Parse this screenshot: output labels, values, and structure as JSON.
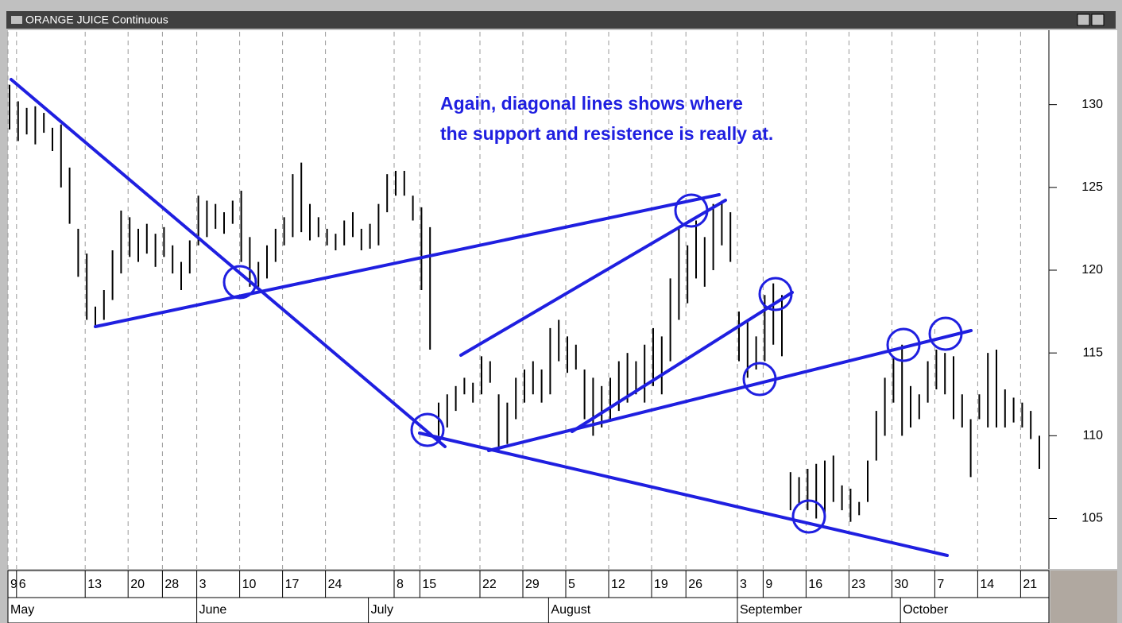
{
  "chart_data": {
    "type": "range-bar",
    "title": "ORANGE JUICE Continuous",
    "annotations": [
      "Again, diagonal lines shows where",
      "the support and resistence is really at."
    ],
    "categories": [
      "9",
      "6",
      null,
      null,
      null,
      null,
      null,
      null,
      null,
      "13",
      null,
      null,
      null,
      null,
      "20",
      null,
      null,
      null,
      "28",
      null,
      null,
      null,
      "3",
      null,
      null,
      null,
      null,
      "10",
      null,
      null,
      null,
      null,
      "17",
      null,
      null,
      null,
      null,
      "24",
      null,
      null,
      null,
      null,
      null,
      null,
      null,
      "8",
      null,
      null,
      "15",
      null,
      null,
      null,
      null,
      null,
      null,
      "22",
      null,
      null,
      null,
      null,
      "29",
      null,
      null,
      null,
      null,
      "5",
      null,
      null,
      null,
      null,
      "12",
      null,
      null,
      null,
      null,
      "19",
      null,
      null,
      null,
      "26",
      null,
      null,
      null,
      null,
      null,
      "3",
      null,
      null,
      "9",
      null,
      null,
      null,
      null,
      "16",
      null,
      null,
      null,
      null,
      "23",
      null,
      null,
      null,
      null,
      "30",
      null,
      null,
      null,
      null,
      "7",
      null,
      null,
      null,
      null,
      "14",
      null,
      null,
      null,
      null,
      "21",
      null,
      null
    ],
    "months": [
      "May",
      null,
      null,
      null,
      null,
      null,
      null,
      null,
      null,
      null,
      null,
      null,
      null,
      null,
      null,
      null,
      null,
      null,
      null,
      null,
      null,
      null,
      "June",
      null,
      null,
      null,
      null,
      null,
      null,
      null,
      null,
      null,
      null,
      null,
      null,
      null,
      null,
      null,
      null,
      null,
      null,
      null,
      "July",
      null,
      null,
      null,
      null,
      null,
      null,
      null,
      null,
      null,
      null,
      null,
      null,
      null,
      null,
      null,
      null,
      null,
      null,
      null,
      null,
      "August",
      null,
      null,
      null,
      null,
      null,
      null,
      null,
      null,
      null,
      null,
      null,
      null,
      null,
      null,
      null,
      null,
      null,
      null,
      null,
      null,
      null,
      "September",
      null,
      null,
      null,
      null,
      null,
      null,
      null,
      null,
      null,
      null,
      null,
      null,
      null,
      null,
      null,
      null,
      null,
      null,
      "October",
      null,
      null,
      null,
      null,
      null,
      null,
      null,
      null,
      null,
      null,
      null,
      null,
      null,
      null,
      null,
      null
    ],
    "high": [
      131.2,
      130.2,
      129.8,
      129.9,
      129.5,
      128.6,
      128.8,
      126.2,
      122.5,
      121.0,
      117.8,
      118.8,
      121.2,
      123.6,
      123.2,
      122.5,
      122.8,
      122.2,
      122.6,
      121.5,
      120.5,
      121.8,
      124.5,
      124.2,
      124.0,
      123.5,
      124.2,
      124.8,
      122.0,
      120.5,
      121.5,
      122.5,
      123.2,
      125.8,
      126.5,
      124.0,
      123.2,
      122.5,
      122.2,
      123.0,
      123.5,
      122.5,
      122.8,
      124.0,
      125.8,
      126.0,
      126.0,
      124.5,
      123.8,
      122.6,
      112.0,
      112.5,
      113.0,
      113.5,
      113.2,
      114.8,
      114.5,
      112.5,
      112.0,
      113.5,
      114.0,
      114.5,
      114.0,
      116.5,
      117.0,
      116.0,
      115.5,
      114.0,
      113.5,
      113.0,
      113.5,
      114.5,
      115.0,
      114.5,
      115.5,
      116.5,
      116.0,
      119.5,
      122.5,
      121.5,
      123.0,
      122.0,
      124.0,
      124.2,
      123.5,
      117.5,
      117.0,
      116.0,
      118.5,
      119.2,
      118.5,
      107.8,
      107.5,
      108.0,
      108.3,
      108.5,
      108.8,
      107.0,
      106.8,
      106.0,
      108.5,
      111.5,
      113.5,
      114.8,
      115.5,
      113.0,
      112.5,
      114.5,
      115.2,
      115.0,
      114.8,
      112.5,
      111.0,
      112.5,
      115.0,
      115.2,
      112.8,
      112.3,
      112.0,
      111.5,
      110.0
    ],
    "low": [
      128.5,
      127.8,
      128.2,
      127.6,
      128.3,
      127.2,
      125.0,
      122.8,
      119.6,
      117.0,
      116.6,
      117.0,
      118.2,
      119.8,
      120.8,
      120.5,
      121.0,
      120.2,
      120.8,
      119.8,
      118.8,
      119.8,
      121.5,
      122.0,
      122.5,
      122.2,
      122.8,
      120.5,
      119.0,
      119.0,
      119.5,
      120.5,
      121.5,
      122.0,
      122.3,
      121.8,
      122.0,
      121.5,
      121.2,
      121.5,
      122.0,
      121.2,
      121.3,
      121.5,
      123.5,
      124.5,
      124.5,
      123.0,
      118.8,
      115.2,
      110.0,
      110.5,
      111.5,
      112.5,
      112.0,
      112.5,
      113.2,
      109.0,
      109.5,
      111.0,
      112.0,
      112.5,
      112.0,
      112.5,
      114.5,
      113.8,
      114.0,
      111.0,
      110.0,
      110.5,
      111.0,
      111.5,
      112.0,
      112.5,
      112.0,
      113.0,
      112.5,
      114.5,
      117.0,
      118.0,
      119.5,
      119.0,
      120.0,
      121.5,
      120.5,
      114.5,
      113.5,
      114.0,
      114.5,
      115.5,
      114.8,
      105.5,
      105.8,
      105.5,
      105.0,
      105.3,
      106.0,
      105.5,
      104.8,
      105.2,
      106.0,
      108.5,
      110.0,
      112.0,
      110.0,
      110.5,
      111.0,
      112.0,
      112.8,
      112.5,
      111.0,
      110.5,
      107.5,
      111.0,
      110.5,
      110.5,
      110.5,
      110.8,
      110.5,
      109.8,
      108.0
    ],
    "color": "#000000",
    "ylim": [
      102,
      134.4
    ],
    "yticks": [
      105,
      110,
      115,
      120,
      125,
      130
    ],
    "grid": true
  }
}
